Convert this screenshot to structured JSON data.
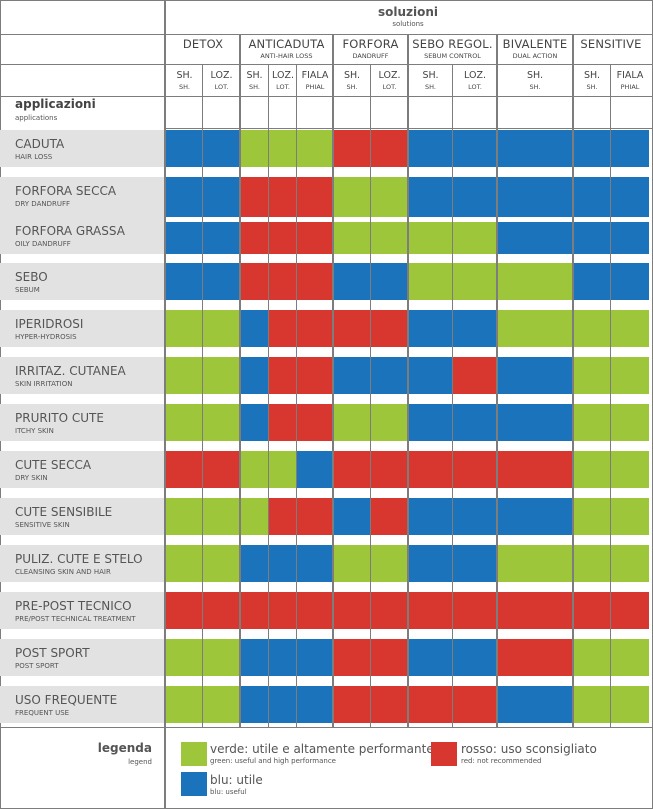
{
  "header": {
    "title": "soluzioni",
    "subtitle": "solutions"
  },
  "groups": [
    {
      "name": "DETOX",
      "sub": ""
    },
    {
      "name": "ANTICADUTA",
      "sub": "ANTI-HAIR LOSS"
    },
    {
      "name": "FORFORA",
      "sub": "DANDRUFF"
    },
    {
      "name": "SEBO REGOL.",
      "sub": "SEBUM CONTROL"
    },
    {
      "name": "BIVALENTE",
      "sub": "DUAL ACTION"
    },
    {
      "name": "SENSITIVE",
      "sub": ""
    }
  ],
  "columns": [
    {
      "label": "SH.",
      "sub": "SH."
    },
    {
      "label": "LOZ.",
      "sub": "LOT."
    },
    {
      "label": "SH.",
      "sub": "SH."
    },
    {
      "label": "LOZ.",
      "sub": "LOT."
    },
    {
      "label": "FIALA",
      "sub": "PHIAL"
    },
    {
      "label": "SH.",
      "sub": "SH."
    },
    {
      "label": "LOZ.",
      "sub": "LOT."
    },
    {
      "label": "SH.",
      "sub": "SH."
    },
    {
      "label": "LOZ.",
      "sub": "LOT."
    },
    {
      "label": "SH.",
      "sub": "SH."
    },
    {
      "label": "SH.",
      "sub": "SH."
    },
    {
      "label": "FIALA",
      "sub": "PHIAL"
    }
  ],
  "applications": {
    "title": "applicazioni",
    "subtitle": "applications"
  },
  "colors": {
    "g": "#9ec63b",
    "r": "#d8372f",
    "b": "#1b74bb"
  },
  "rows": [
    {
      "name": "CADUTA",
      "sub": "HAIR LOSS",
      "values": [
        "b",
        "b",
        "g",
        "g",
        "g",
        "r",
        "r",
        "b",
        "b",
        "b",
        "b",
        "b"
      ]
    },
    {
      "name": "FORFORA SECCA",
      "sub": "DRY DANDRUFF",
      "values": [
        "b",
        "b",
        "r",
        "r",
        "r",
        "g",
        "g",
        "b",
        "b",
        "b",
        "b",
        "b"
      ]
    },
    {
      "name": "FORFORA GRASSA",
      "sub": "OILY DANDRUFF",
      "values": [
        "b",
        "b",
        "r",
        "r",
        "r",
        "g",
        "g",
        "g",
        "g",
        "b",
        "b",
        "b"
      ]
    },
    {
      "name": "SEBO",
      "sub": "SEBUM",
      "values": [
        "b",
        "b",
        "r",
        "r",
        "r",
        "b",
        "b",
        "g",
        "g",
        "g",
        "b",
        "b"
      ]
    },
    {
      "name": "IPERIDROSI",
      "sub": "HYPER-HYDROSIS",
      "values": [
        "g",
        "g",
        "b",
        "r",
        "r",
        "r",
        "r",
        "b",
        "b",
        "g",
        "g",
        "g"
      ]
    },
    {
      "name": "IRRITAZ. CUTANEA",
      "sub": "SKIN IRRITATION",
      "values": [
        "g",
        "g",
        "b",
        "r",
        "r",
        "b",
        "b",
        "b",
        "r",
        "b",
        "g",
        "g"
      ]
    },
    {
      "name": "PRURITO CUTE",
      "sub": "ITCHY SKIN",
      "values": [
        "g",
        "g",
        "b",
        "r",
        "r",
        "g",
        "g",
        "b",
        "b",
        "b",
        "g",
        "g"
      ]
    },
    {
      "name": "CUTE SECCA",
      "sub": "DRY SKIN",
      "values": [
        "r",
        "r",
        "g",
        "g",
        "b",
        "r",
        "r",
        "r",
        "r",
        "r",
        "g",
        "g"
      ]
    },
    {
      "name": "CUTE SENSIBILE",
      "sub": "SENSITIVE SKIN",
      "values": [
        "g",
        "g",
        "g",
        "r",
        "r",
        "b",
        "r",
        "b",
        "b",
        "b",
        "g",
        "g"
      ]
    },
    {
      "name": "PULIZ. CUTE E STELO",
      "sub": "CLEANSING SKIN AND HAIR",
      "values": [
        "g",
        "g",
        "b",
        "b",
        "b",
        "g",
        "g",
        "b",
        "b",
        "g",
        "g",
        "g"
      ]
    },
    {
      "name": "PRE-POST TECNICO",
      "sub": "PRE/POST TECHNICAL TREATMENT",
      "values": [
        "r",
        "r",
        "r",
        "r",
        "r",
        "r",
        "r",
        "r",
        "r",
        "r",
        "r",
        "r"
      ]
    },
    {
      "name": "POST SPORT",
      "sub": "POST SPORT",
      "values": [
        "g",
        "g",
        "b",
        "b",
        "b",
        "r",
        "r",
        "b",
        "b",
        "r",
        "g",
        "g"
      ]
    },
    {
      "name": "USO FREQUENTE",
      "sub": "FREQUENT USE",
      "values": [
        "g",
        "g",
        "b",
        "b",
        "b",
        "r",
        "r",
        "r",
        "r",
        "b",
        "g",
        "g"
      ]
    }
  ],
  "legend": {
    "title": "legenda",
    "subtitle": "legend",
    "items": [
      {
        "key": "g",
        "label": "verde: utile e altamente performante",
        "sub": "green: useful and high performance"
      },
      {
        "key": "r",
        "label": "rosso: uso sconsigliato",
        "sub": "red: not recommended"
      },
      {
        "key": "b",
        "label": "blu: utile",
        "sub": "blu: useful"
      }
    ]
  }
}
